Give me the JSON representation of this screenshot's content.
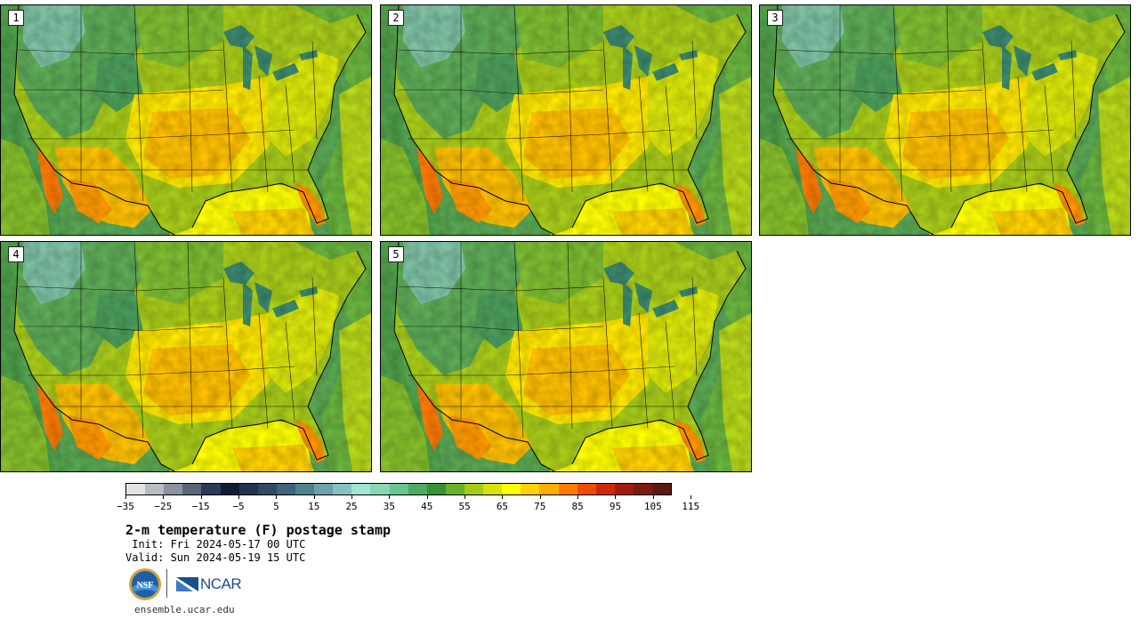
{
  "panels": [
    {
      "label": "1"
    },
    {
      "label": "2"
    },
    {
      "label": "3"
    },
    {
      "label": "4"
    },
    {
      "label": "5"
    }
  ],
  "colorbar": {
    "colors": [
      "#e3e3e3",
      "#b9bcc4",
      "#8c939f",
      "#5c6577",
      "#2c3a55",
      "#101c33",
      "#203450",
      "#2f4a66",
      "#3f637a",
      "#52818e",
      "#6ba3a8",
      "#86c2c0",
      "#a3e4d6",
      "#87d8b2",
      "#69c48f",
      "#4daa62",
      "#359334",
      "#67b226",
      "#a6cc15",
      "#d8e30a",
      "#ffff00",
      "#ffd200",
      "#ffad00",
      "#ff7c00",
      "#ee4c00",
      "#cc2a06",
      "#a11c0c",
      "#7e190f",
      "#5c1811"
    ],
    "tick_labels": [
      "−35",
      "−25",
      "−15",
      "−5",
      "5",
      "15",
      "25",
      "35",
      "45",
      "55",
      "65",
      "75",
      "85",
      "95",
      "105",
      "115"
    ]
  },
  "title": "2-m temperature (F) postage stamp",
  "init_text": " Init: Fri 2024-05-17 00 UTC",
  "valid_text": "Valid: Sun 2024-05-19 15 UTC",
  "logos": {
    "nsf": "NSF",
    "ncar": "NCAR"
  },
  "url": "ensemble.ucar.edu"
}
